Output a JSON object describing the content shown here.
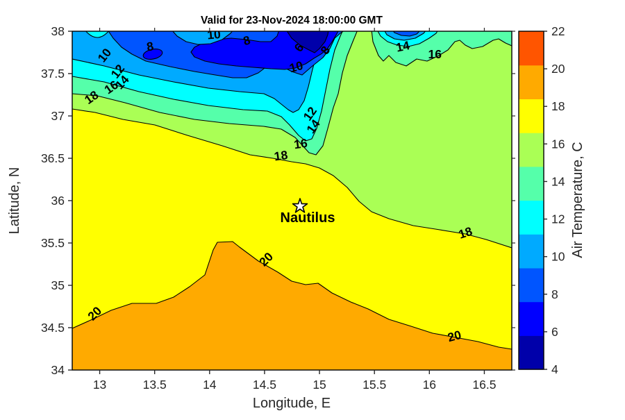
{
  "title": "Valid for 23-Nov-2024 18:00:00 GMT",
  "axes": {
    "xlabel": "Longitude, E",
    "ylabel": "Latitude, N",
    "x_ticks": [
      13,
      13.5,
      14,
      14.5,
      15,
      15.5,
      16,
      16.5
    ],
    "y_ticks": [
      34,
      34.5,
      35,
      35.5,
      36,
      36.5,
      37,
      37.5,
      38
    ],
    "tick_color": "#262626"
  },
  "colorbar": {
    "label": "Air Temperature, C",
    "ticks": [
      4,
      6,
      8,
      10,
      12,
      14,
      16,
      18,
      20,
      22
    ],
    "range": [
      4,
      22
    ],
    "colors_bottom_to_top": [
      "#0000AA",
      "#0000FF",
      "#0055FF",
      "#00AAFF",
      "#00FFFF",
      "#55FFAA",
      "#AAFF55",
      "#FFFF00",
      "#FFAA00",
      "#FF5500"
    ]
  },
  "colors": {
    "navy": "#0000AA",
    "blue": "#0000FF",
    "royal": "#0055FF",
    "deepsky": "#00AAFF",
    "cyan": "#00FFFF",
    "spring": "#55FFAA",
    "gyellow": "#AAFF55",
    "yellow": "#FFFF00",
    "orange": "#FFAA00",
    "orangered": "#FF5500",
    "marker_fill": "#FFFFFF",
    "line": "#000000"
  },
  "station": {
    "name": "Nautilus",
    "lon": 14.82,
    "lat": 35.93
  },
  "chart_data": {
    "type": "heatmap",
    "subtype": "filled-contour-map",
    "title": "Valid for 23-Nov-2024 18:00:00 GMT",
    "xlabel": "Longitude, E",
    "ylabel": "Latitude, N",
    "units": "degrees C",
    "xlim": [
      12.75,
      16.75
    ],
    "ylim": [
      34,
      38
    ],
    "contour_levels": [
      6,
      8,
      10,
      12,
      14,
      16,
      18,
      20
    ],
    "colorbar_label": "Air Temperature, C",
    "colorbar_range": [
      4,
      22
    ],
    "legend_position": "right",
    "grid": false,
    "field_summary": "Air temperature decreases from >20C (orange) in the south to 4-6C (navy) in the far north; cold tongue dips to ~36.6N near 14.9E; station Nautilus at 14.82E 35.93N sits in the 18-20C band",
    "contour_labels": [
      {
        "text": "10",
        "lon": 13.05,
        "lat": 37.71,
        "rot": -52
      },
      {
        "text": "12",
        "lon": 13.17,
        "lat": 37.52,
        "rot": -52
      },
      {
        "text": "14",
        "lon": 13.21,
        "lat": 37.39,
        "rot": -48
      },
      {
        "text": "16",
        "lon": 13.11,
        "lat": 37.33,
        "rot": -35
      },
      {
        "text": "18",
        "lon": 12.93,
        "lat": 37.21,
        "rot": -35
      },
      {
        "text": "8",
        "lon": 13.46,
        "lat": 37.81,
        "rot": -10
      },
      {
        "text": "10",
        "lon": 14.04,
        "lat": 37.95,
        "rot": -5
      },
      {
        "text": "8",
        "lon": 14.34,
        "lat": 37.88,
        "rot": -15
      },
      {
        "text": "6",
        "lon": 14.82,
        "lat": 37.8,
        "rot": -55
      },
      {
        "text": "8",
        "lon": 15.06,
        "lat": 37.77,
        "rot": -55
      },
      {
        "text": "10",
        "lon": 14.79,
        "lat": 37.57,
        "rot": -15
      },
      {
        "text": "12",
        "lon": 14.92,
        "lat": 37.02,
        "rot": -55
      },
      {
        "text": "14",
        "lon": 14.95,
        "lat": 36.87,
        "rot": -55
      },
      {
        "text": "16",
        "lon": 14.83,
        "lat": 36.66,
        "rot": -8
      },
      {
        "text": "18",
        "lon": 14.65,
        "lat": 36.52,
        "rot": -8
      },
      {
        "text": "14",
        "lon": 15.76,
        "lat": 37.81,
        "rot": -12
      },
      {
        "text": "16",
        "lon": 16.05,
        "lat": 37.72,
        "rot": 0
      },
      {
        "text": "18",
        "lon": 16.33,
        "lat": 35.61,
        "rot": -18
      },
      {
        "text": "20",
        "lon": 16.23,
        "lat": 34.39,
        "rot": -15
      },
      {
        "text": "20",
        "lon": 14.52,
        "lat": 35.3,
        "rot": -45
      },
      {
        "text": "20",
        "lon": 12.96,
        "lat": 34.66,
        "rot": -45
      }
    ]
  }
}
